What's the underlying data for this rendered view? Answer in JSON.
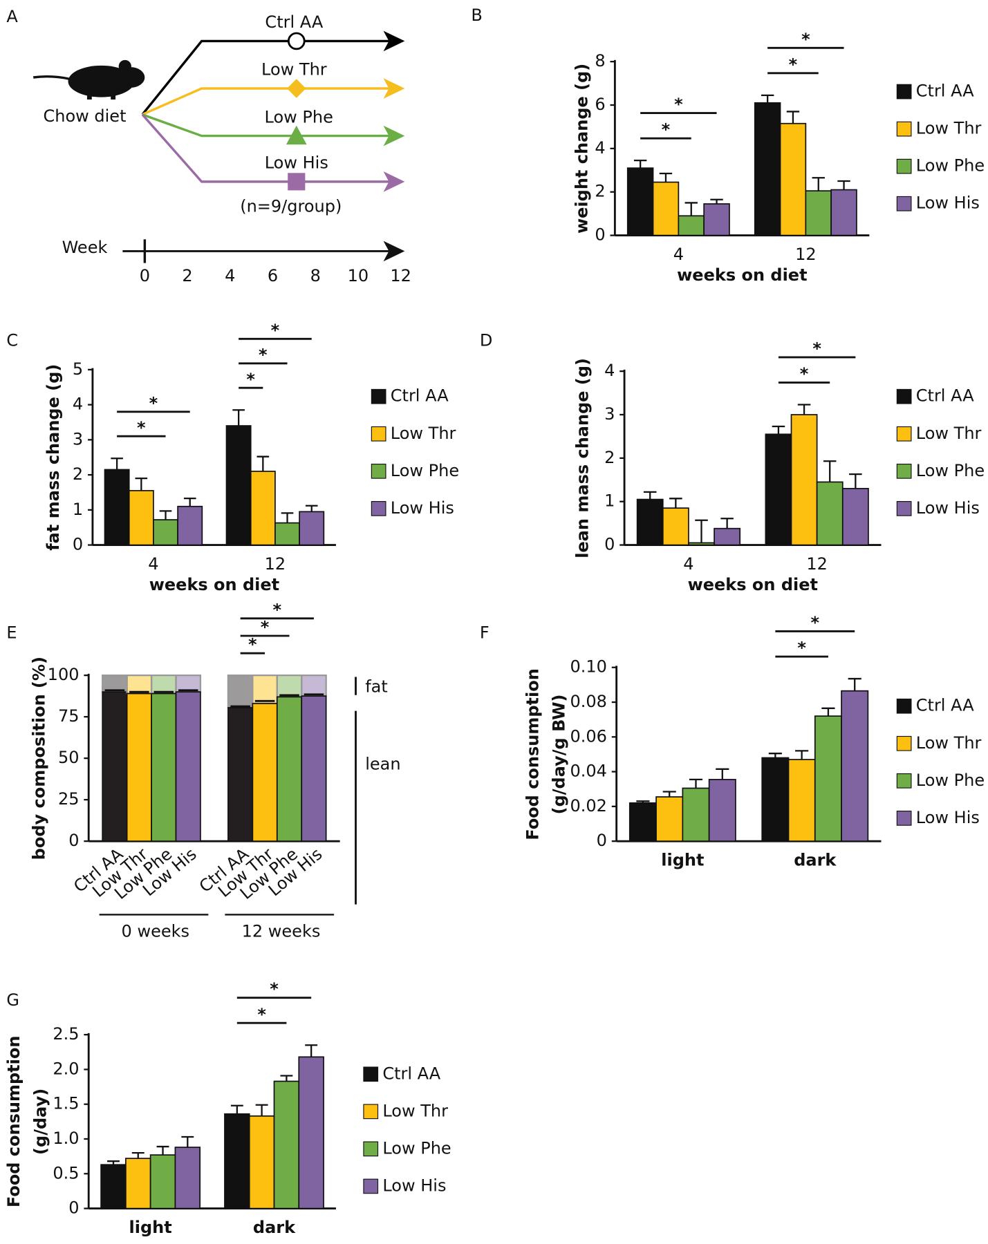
{
  "diagram": {
    "panel": "A",
    "start": "Chow diet",
    "arms": [
      {
        "label": "Ctrl AA",
        "color": "#000000"
      },
      {
        "label": "Low Thr",
        "color": "#F5BE1E"
      },
      {
        "label": "Low Phe",
        "color": "#6AAE45"
      },
      {
        "label": "Low His",
        "color": "#9B6BA6"
      }
    ],
    "note": "(n=9/group)",
    "timeline": {
      "label": "Week",
      "ticks": [
        0,
        2,
        4,
        6,
        8,
        10,
        12
      ]
    }
  },
  "chart_data": [
    {
      "type": "bar",
      "panel": "B",
      "ylabel": [
        "weight change (g)"
      ],
      "xlabel": "weeks on diet",
      "categories": [
        "4",
        "12"
      ],
      "ylim": [
        0,
        8
      ],
      "yticks": [
        0,
        2,
        4,
        6,
        8
      ],
      "series": [
        {
          "name": "Ctrl AA",
          "color": "#111111",
          "values": [
            3.1,
            6.1
          ],
          "errors": [
            0.35,
            0.35
          ]
        },
        {
          "name": "Low Thr",
          "color": "#FDC010",
          "values": [
            2.45,
            5.15
          ],
          "errors": [
            0.4,
            0.55
          ]
        },
        {
          "name": "Low Phe",
          "color": "#70AD47",
          "values": [
            0.9,
            2.05
          ],
          "errors": [
            0.6,
            0.6
          ]
        },
        {
          "name": "Low His",
          "color": "#8064A2",
          "values": [
            1.45,
            2.1
          ],
          "errors": [
            0.2,
            0.4
          ]
        }
      ],
      "annotations": [
        "*",
        "*",
        "*",
        "*"
      ]
    },
    {
      "type": "bar",
      "panel": "C",
      "ylabel": [
        "fat mass change (g)"
      ],
      "xlabel": "weeks on diet",
      "categories": [
        "4",
        "12"
      ],
      "ylim": [
        0,
        5
      ],
      "yticks": [
        0,
        1,
        2,
        3,
        4,
        5
      ],
      "series": [
        {
          "name": "Ctrl AA",
          "color": "#111111",
          "values": [
            2.15,
            3.4
          ],
          "errors": [
            0.32,
            0.45
          ]
        },
        {
          "name": "Low Thr",
          "color": "#FDC010",
          "values": [
            1.55,
            2.1
          ],
          "errors": [
            0.35,
            0.42
          ]
        },
        {
          "name": "Low Phe",
          "color": "#70AD47",
          "values": [
            0.72,
            0.63
          ],
          "errors": [
            0.25,
            0.28
          ]
        },
        {
          "name": "Low His",
          "color": "#8064A2",
          "values": [
            1.1,
            0.95
          ],
          "errors": [
            0.23,
            0.17
          ]
        }
      ],
      "annotations": [
        "*",
        "*",
        "*",
        "*",
        "*"
      ]
    },
    {
      "type": "bar",
      "panel": "D",
      "ylabel": [
        "lean mass change (g)"
      ],
      "xlabel": "weeks on diet",
      "categories": [
        "4",
        "12"
      ],
      "ylim": [
        0,
        4
      ],
      "yticks": [
        0,
        1,
        2,
        3,
        4
      ],
      "series": [
        {
          "name": "Ctrl AA",
          "color": "#111111",
          "values": [
            1.05,
            2.55
          ],
          "errors": [
            0.17,
            0.18
          ]
        },
        {
          "name": "Low Thr",
          "color": "#FDC010",
          "values": [
            0.85,
            3.0
          ],
          "errors": [
            0.22,
            0.23
          ]
        },
        {
          "name": "Low Phe",
          "color": "#70AD47",
          "values": [
            0.05,
            1.45
          ],
          "errors": [
            0.52,
            0.48
          ]
        },
        {
          "name": "Low His",
          "color": "#8064A2",
          "values": [
            0.38,
            1.3
          ],
          "errors": [
            0.23,
            0.33
          ]
        }
      ],
      "annotations": [
        "*",
        "*"
      ]
    },
    {
      "type": "stacked_bar",
      "panel": "E",
      "ylabel": [
        "body composition (%)"
      ],
      "groups": [
        "0 weeks",
        "12 weeks"
      ],
      "categories": [
        "Ctrl AA",
        "Low Thr",
        "Low Phe",
        "Low His",
        "Ctrl AA",
        "Low Thr",
        "Low Phe",
        "Low His"
      ],
      "colors": [
        "#231F20",
        "#FDC010",
        "#70AD47",
        "#8064A2"
      ],
      "ylim": [
        0,
        100
      ],
      "yticks": [
        0,
        25,
        50,
        75,
        100
      ],
      "series": [
        {
          "name": "lean",
          "values": [
            90,
            89,
            89,
            90,
            80.5,
            83,
            87,
            87.5
          ],
          "errors": [
            1,
            1,
            1,
            1,
            0.8,
            1.5,
            1,
            1
          ]
        },
        {
          "name": "fat",
          "values": [
            10,
            11,
            11,
            10,
            19.5,
            17,
            13,
            12.5
          ]
        }
      ],
      "annotations": [
        "*",
        "*",
        "*"
      ]
    },
    {
      "type": "bar",
      "panel": "F",
      "ylabel": [
        "Food consumption",
        "(g/day/g BW)"
      ],
      "categories": [
        "light",
        "dark"
      ],
      "ylim": [
        0,
        0.1
      ],
      "yticks": [
        0,
        {
          "value": 0.02,
          "label": "0.02"
        },
        {
          "value": 0.04,
          "label": "0.04"
        },
        {
          "value": 0.06,
          "label": "0.06"
        },
        {
          "value": 0.08,
          "label": "0.08"
        },
        {
          "value": 0.1,
          "label": "0.10"
        }
      ],
      "series": [
        {
          "name": "Ctrl AA",
          "color": "#111111",
          "values": [
            0.022,
            0.048
          ],
          "errors": [
            0.001,
            0.0025
          ]
        },
        {
          "name": "Low Thr",
          "color": "#FDC010",
          "values": [
            0.0255,
            0.047
          ],
          "errors": [
            0.003,
            0.005
          ]
        },
        {
          "name": "Low Phe",
          "color": "#70AD47",
          "values": [
            0.0305,
            0.072
          ],
          "errors": [
            0.005,
            0.0045
          ]
        },
        {
          "name": "Low His",
          "color": "#8064A2",
          "values": [
            0.0355,
            0.0865
          ],
          "errors": [
            0.006,
            0.007
          ]
        }
      ],
      "annotations": [
        "*",
        "*"
      ]
    },
    {
      "type": "bar",
      "panel": "G",
      "ylabel": [
        "Food consumption",
        "(g/day)"
      ],
      "categories": [
        "light",
        "dark"
      ],
      "ylim": [
        0,
        2.5
      ],
      "yticks": [
        0,
        0.5,
        {
          "value": 1,
          "label": "1.0"
        },
        1.5,
        {
          "value": 2,
          "label": "2.0"
        },
        2.5
      ],
      "series": [
        {
          "name": "Ctrl AA",
          "color": "#111111",
          "values": [
            0.63,
            1.36
          ],
          "errors": [
            0.05,
            0.12
          ]
        },
        {
          "name": "Low Thr",
          "color": "#FDC010",
          "values": [
            0.72,
            1.33
          ],
          "errors": [
            0.08,
            0.16
          ]
        },
        {
          "name": "Low Phe",
          "color": "#70AD47",
          "values": [
            0.77,
            1.83
          ],
          "errors": [
            0.12,
            0.08
          ]
        },
        {
          "name": "Low His",
          "color": "#8064A2",
          "values": [
            0.88,
            2.18
          ],
          "errors": [
            0.15,
            0.17
          ]
        }
      ],
      "annotations": [
        "*",
        "*"
      ]
    }
  ]
}
